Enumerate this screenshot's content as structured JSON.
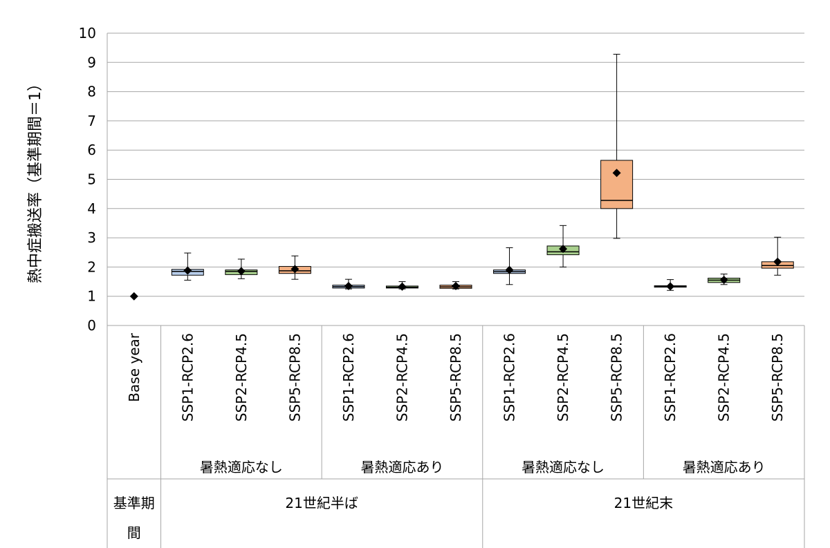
{
  "chart_data": {
    "type": "boxplot",
    "ylabel": "熱中症搬送率（基準期間＝1）",
    "ylim": [
      0,
      10
    ],
    "yticks": [
      0,
      1,
      2,
      3,
      4,
      5,
      6,
      7,
      8,
      9,
      10
    ],
    "grid": true,
    "colors": {
      "SSP1-RCP2.6": "#b7cdea",
      "SSP2-RCP4.5": "#a9d08e",
      "SSP5-RCP8.5": "#f4b183"
    },
    "categories": [
      "Base year",
      "SSP1-RCP2.6",
      "SSP2-RCP4.5",
      "SSP5-RCP8.5",
      "SSP1-RCP2.6",
      "SSP2-RCP4.5",
      "SSP5-RCP8.5",
      "SSP1-RCP2.6",
      "SSP2-RCP4.5",
      "SSP5-RCP8.5",
      "SSP1-RCP2.6",
      "SSP2-RCP4.5",
      "SSP5-RCP8.5"
    ],
    "adaptation_groups": [
      {
        "label": "暑熱適応なし",
        "from": 1,
        "to": 3
      },
      {
        "label": "暑熱適応あり",
        "from": 4,
        "to": 6
      },
      {
        "label": "暑熱適応なし",
        "from": 7,
        "to": 9
      },
      {
        "label": "暑熱適応あり",
        "from": 10,
        "to": 12
      }
    ],
    "period_groups": [
      {
        "label": "基準期間",
        "from": 0,
        "to": 0
      },
      {
        "label": "21世紀半ば",
        "from": 1,
        "to": 6
      },
      {
        "label": "21世紀末",
        "from": 7,
        "to": 12
      }
    ],
    "boxes": [
      {
        "min": null,
        "q1": null,
        "median": null,
        "q3": null,
        "max": null,
        "mean": 1.0
      },
      {
        "min": 1.55,
        "q1": 1.72,
        "median": 1.85,
        "q3": 1.92,
        "max": 2.48,
        "mean": 1.88
      },
      {
        "min": 1.6,
        "q1": 1.74,
        "median": 1.85,
        "q3": 1.9,
        "max": 2.27,
        "mean": 1.86
      },
      {
        "min": 1.58,
        "q1": 1.78,
        "median": 1.87,
        "q3": 2.02,
        "max": 2.38,
        "mean": 1.93
      },
      {
        "min": 1.25,
        "q1": 1.28,
        "median": 1.33,
        "q3": 1.38,
        "max": 1.58,
        "mean": 1.35
      },
      {
        "min": 1.25,
        "q1": 1.28,
        "median": 1.31,
        "q3": 1.35,
        "max": 1.5,
        "mean": 1.33
      },
      {
        "min": 1.25,
        "q1": 1.27,
        "median": 1.32,
        "q3": 1.38,
        "max": 1.5,
        "mean": 1.35
      },
      {
        "min": 1.4,
        "q1": 1.78,
        "median": 1.84,
        "q3": 1.9,
        "max": 2.66,
        "mean": 1.9
      },
      {
        "min": 2.0,
        "q1": 2.42,
        "median": 2.52,
        "q3": 2.72,
        "max": 3.42,
        "mean": 2.62
      },
      {
        "min": 2.98,
        "q1": 4.0,
        "median": 4.28,
        "q3": 5.65,
        "max": 9.28,
        "mean": 5.22
      },
      {
        "min": 1.2,
        "q1": 1.31,
        "median": 1.34,
        "q3": 1.36,
        "max": 1.57,
        "mean": 1.34
      },
      {
        "min": 1.4,
        "q1": 1.47,
        "median": 1.55,
        "q3": 1.62,
        "max": 1.76,
        "mean": 1.56
      },
      {
        "min": 1.72,
        "q1": 1.96,
        "median": 2.05,
        "q3": 2.18,
        "max": 3.02,
        "mean": 2.18
      }
    ]
  }
}
